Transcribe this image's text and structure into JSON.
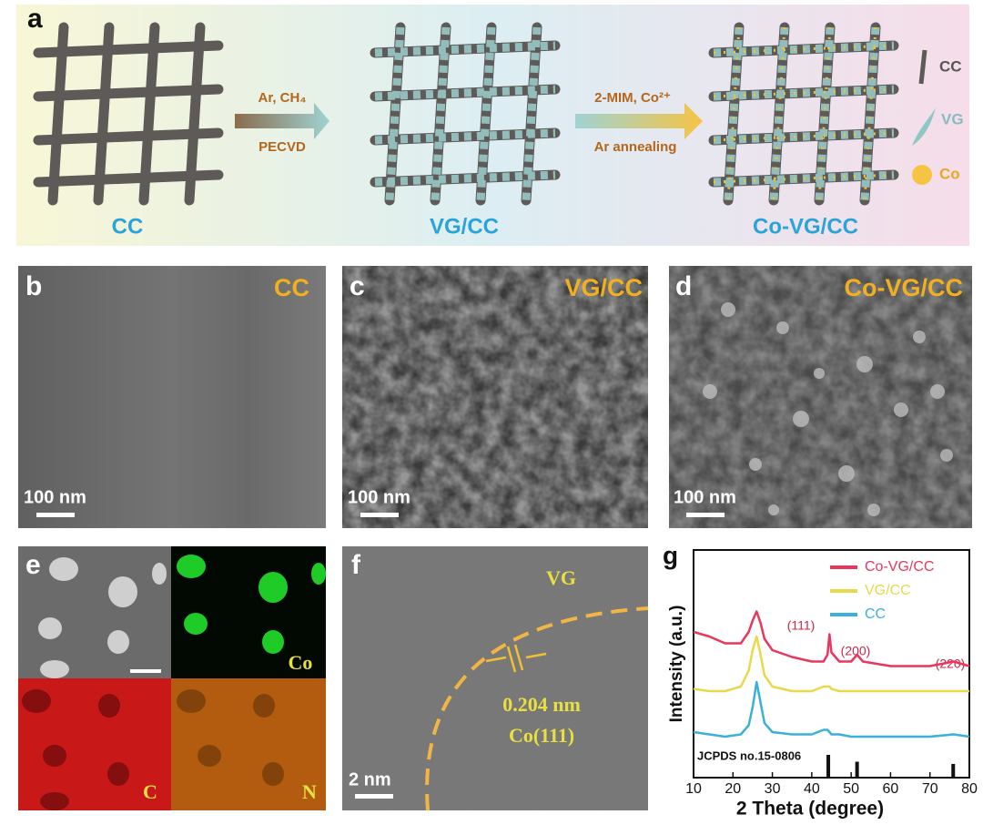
{
  "panel_a": {
    "label": "a",
    "stages": [
      "CC",
      "VG/CC",
      "Co-VG/CC"
    ],
    "step1": {
      "top": "Ar, CH₄",
      "bottom": "PECVD"
    },
    "step2": {
      "top": "2-MIM, Co²⁺",
      "bottom": "Ar annealing"
    },
    "legend": [
      "CC",
      "VG",
      "Co"
    ]
  },
  "panel_b": {
    "label": "b",
    "title": "CC",
    "scale_bar": "100 nm"
  },
  "panel_c": {
    "label": "c",
    "title": "VG/CC",
    "scale_bar": "100 nm"
  },
  "panel_d": {
    "label": "d",
    "title": "Co-VG/CC",
    "scale_bar": "100 nm"
  },
  "panel_e": {
    "label": "e",
    "maps": [
      "Co",
      "C",
      "N"
    ]
  },
  "panel_f": {
    "label": "f",
    "region": "VG",
    "spacing": "0.204 nm",
    "plane": "Co(111)",
    "scale_bar": "2 nm"
  },
  "chart_data": {
    "type": "line",
    "label": "g",
    "x_label": "2 Theta (degree)",
    "y_label": "Intensity (a.u.)",
    "x": [
      10,
      14,
      18,
      22,
      24,
      25,
      26,
      27,
      28,
      30,
      35,
      40,
      43,
      44,
      44.5,
      45,
      47,
      50,
      51.5,
      53,
      60,
      70,
      76,
      80
    ],
    "series": [
      {
        "name": "Co-VG/CC",
        "color": "#e8365d",
        "values": [
          64,
          62,
          59,
          59,
          64,
          69,
          73,
          68,
          61,
          56,
          53,
          51,
          51,
          54,
          63,
          55,
          51,
          51,
          54,
          51,
          49,
          49,
          51,
          49
        ]
      },
      {
        "name": "VG/CC",
        "color": "#e8d84a",
        "values": [
          39,
          38,
          38,
          40,
          47,
          56,
          62,
          54,
          45,
          40,
          38,
          38,
          40,
          40,
          40,
          39,
          38,
          38,
          38,
          38,
          38,
          38,
          38,
          38
        ]
      },
      {
        "name": "CC",
        "color": "#3bb0d8",
        "values": [
          20,
          19,
          18,
          19,
          23,
          31,
          42,
          33,
          24,
          20,
          19,
          19,
          21,
          21,
          20,
          19,
          19,
          18,
          18,
          18,
          18,
          18,
          19,
          18
        ]
      }
    ],
    "reference": {
      "name": "JCPDS no.15-0806",
      "x": [
        44.2,
        51.5,
        75.9
      ],
      "values": [
        10,
        7,
        6
      ]
    },
    "peak_labels": [
      "(111)",
      "(200)",
      "(220)"
    ],
    "xlim": [
      10,
      80
    ],
    "xticks": [
      10,
      20,
      30,
      40,
      50,
      60,
      70,
      80
    ],
    "ylim": [
      0,
      100
    ]
  }
}
